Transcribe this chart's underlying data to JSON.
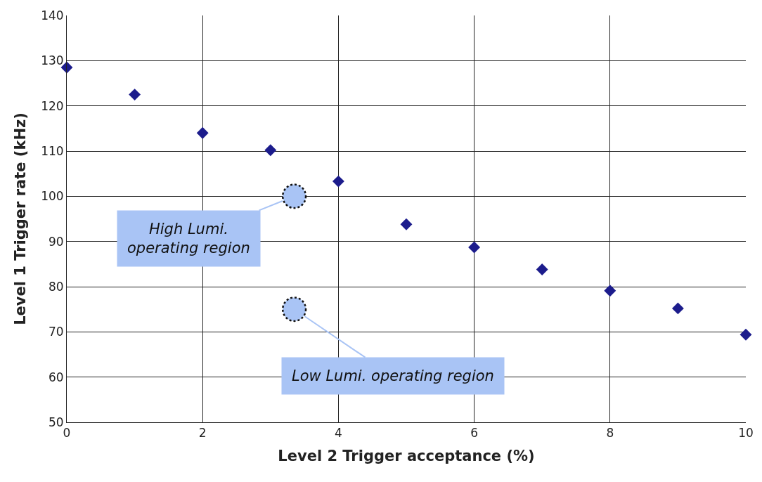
{
  "chart_data": {
    "type": "scatter",
    "xlabel": "Level 2 Trigger acceptance (%)",
    "ylabel": "Level 1 Trigger rate (kHz)",
    "x": [
      0,
      1,
      2,
      3,
      4,
      5,
      6,
      7,
      8,
      9,
      10
    ],
    "series": [
      {
        "color": "#1c1c8c",
        "values": [
          128.5,
          122.5,
          114,
          110.2,
          103.3,
          93.8,
          88.7,
          83.8,
          79.1,
          75.2,
          69.4
        ]
      }
    ],
    "marker": "diamond",
    "grid": true,
    "xlim": [
      0,
      10
    ],
    "xticks": [
      0,
      2,
      4,
      6,
      8,
      10
    ],
    "ylim": [
      50,
      140
    ],
    "yticks": [
      50,
      60,
      70,
      80,
      90,
      100,
      110,
      120,
      130,
      140
    ],
    "annotations": [
      {
        "text": "High Lumi.\noperating region",
        "x": 3.35,
        "y": 100
      },
      {
        "text": "Low Lumi. operating region",
        "x": 3.35,
        "y": 75
      }
    ]
  }
}
